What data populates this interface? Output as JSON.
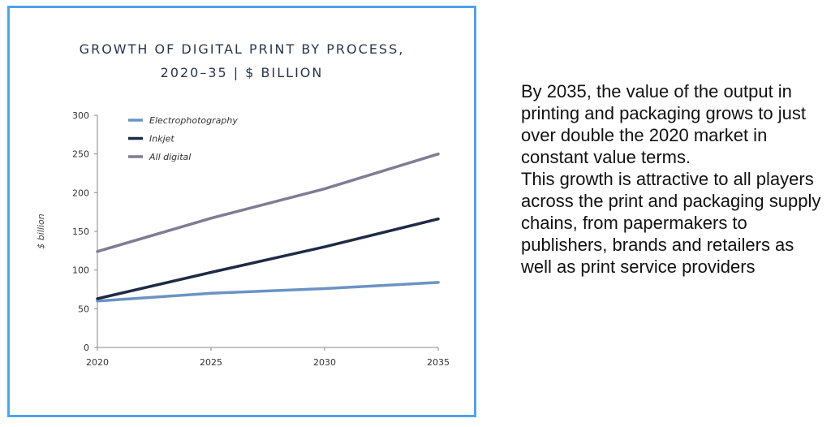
{
  "chart_data": {
    "type": "line",
    "title_line1": "GROWTH OF DIGITAL PRINT BY PROCESS,",
    "title_line2": "2020–35 | $ BILLION",
    "xlabel": "",
    "ylabel": "$ billion",
    "x": [
      2020,
      2025,
      2030,
      2035
    ],
    "xticks": [
      "2020",
      "2025",
      "2030",
      "2035"
    ],
    "yticks": [
      "0",
      "50",
      "100",
      "150",
      "200",
      "250",
      "300"
    ],
    "ylim": [
      0,
      300
    ],
    "legend_position": "top-left",
    "grid": false,
    "series": [
      {
        "name": "Electrophotography",
        "values": [
          60,
          70,
          76,
          84
        ],
        "color": "#6b93c4"
      },
      {
        "name": "Inkjet",
        "values": [
          63,
          97,
          130,
          166
        ],
        "color": "#1f2a44"
      },
      {
        "name": "All digital",
        "values": [
          124,
          167,
          205,
          250
        ],
        "color": "#7f7c93"
      }
    ]
  },
  "side_text": {
    "paragraph1": "By 2035, the value of the output in printing and packaging grows to  just over double the 2020 market in constant value terms.",
    "paragraph2": "This growth is attractive to all players across the print and packaging supply chains, from papermakers to publishers, brands and retailers as well as print service providers"
  }
}
